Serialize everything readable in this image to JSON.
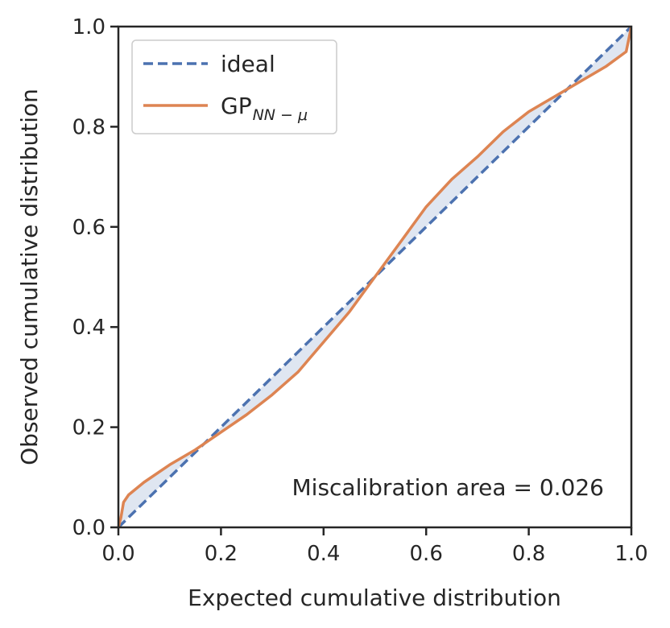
{
  "chart_data": {
    "type": "line",
    "xlabel": "Expected cumulative distribution",
    "ylabel": "Observed cumulative distribution",
    "xlim": [
      0.0,
      1.0
    ],
    "ylim": [
      0.0,
      1.0
    ],
    "xticks": [
      "0.0",
      "0.2",
      "0.4",
      "0.6",
      "0.8",
      "1.0"
    ],
    "yticks": [
      "0.0",
      "0.2",
      "0.4",
      "0.6",
      "0.8",
      "1.0"
    ],
    "grid": false,
    "legend_position": "top-left",
    "annotation": "Miscalibration area = 0.026",
    "fill_between": {
      "series": [
        "ideal",
        "GP"
      ],
      "color": "#4c72b0",
      "opacity": 0.18
    },
    "series": [
      {
        "name": "ideal",
        "style": "dashed",
        "color": "#4c72b0",
        "x": [
          0.0,
          1.0
        ],
        "y": [
          0.0,
          1.0
        ]
      },
      {
        "name": "GP",
        "name_subscript": "NN − μ",
        "style": "solid",
        "color": "#dd8452",
        "x": [
          0.0,
          0.005,
          0.01,
          0.02,
          0.05,
          0.1,
          0.15,
          0.2,
          0.25,
          0.3,
          0.35,
          0.4,
          0.45,
          0.5,
          0.55,
          0.6,
          0.65,
          0.7,
          0.75,
          0.8,
          0.85,
          0.9,
          0.95,
          0.99,
          1.0
        ],
        "y": [
          0.0,
          0.02,
          0.05,
          0.065,
          0.09,
          0.125,
          0.155,
          0.19,
          0.225,
          0.265,
          0.31,
          0.37,
          0.43,
          0.5,
          0.57,
          0.64,
          0.695,
          0.74,
          0.79,
          0.83,
          0.86,
          0.89,
          0.92,
          0.95,
          1.0
        ]
      }
    ]
  }
}
